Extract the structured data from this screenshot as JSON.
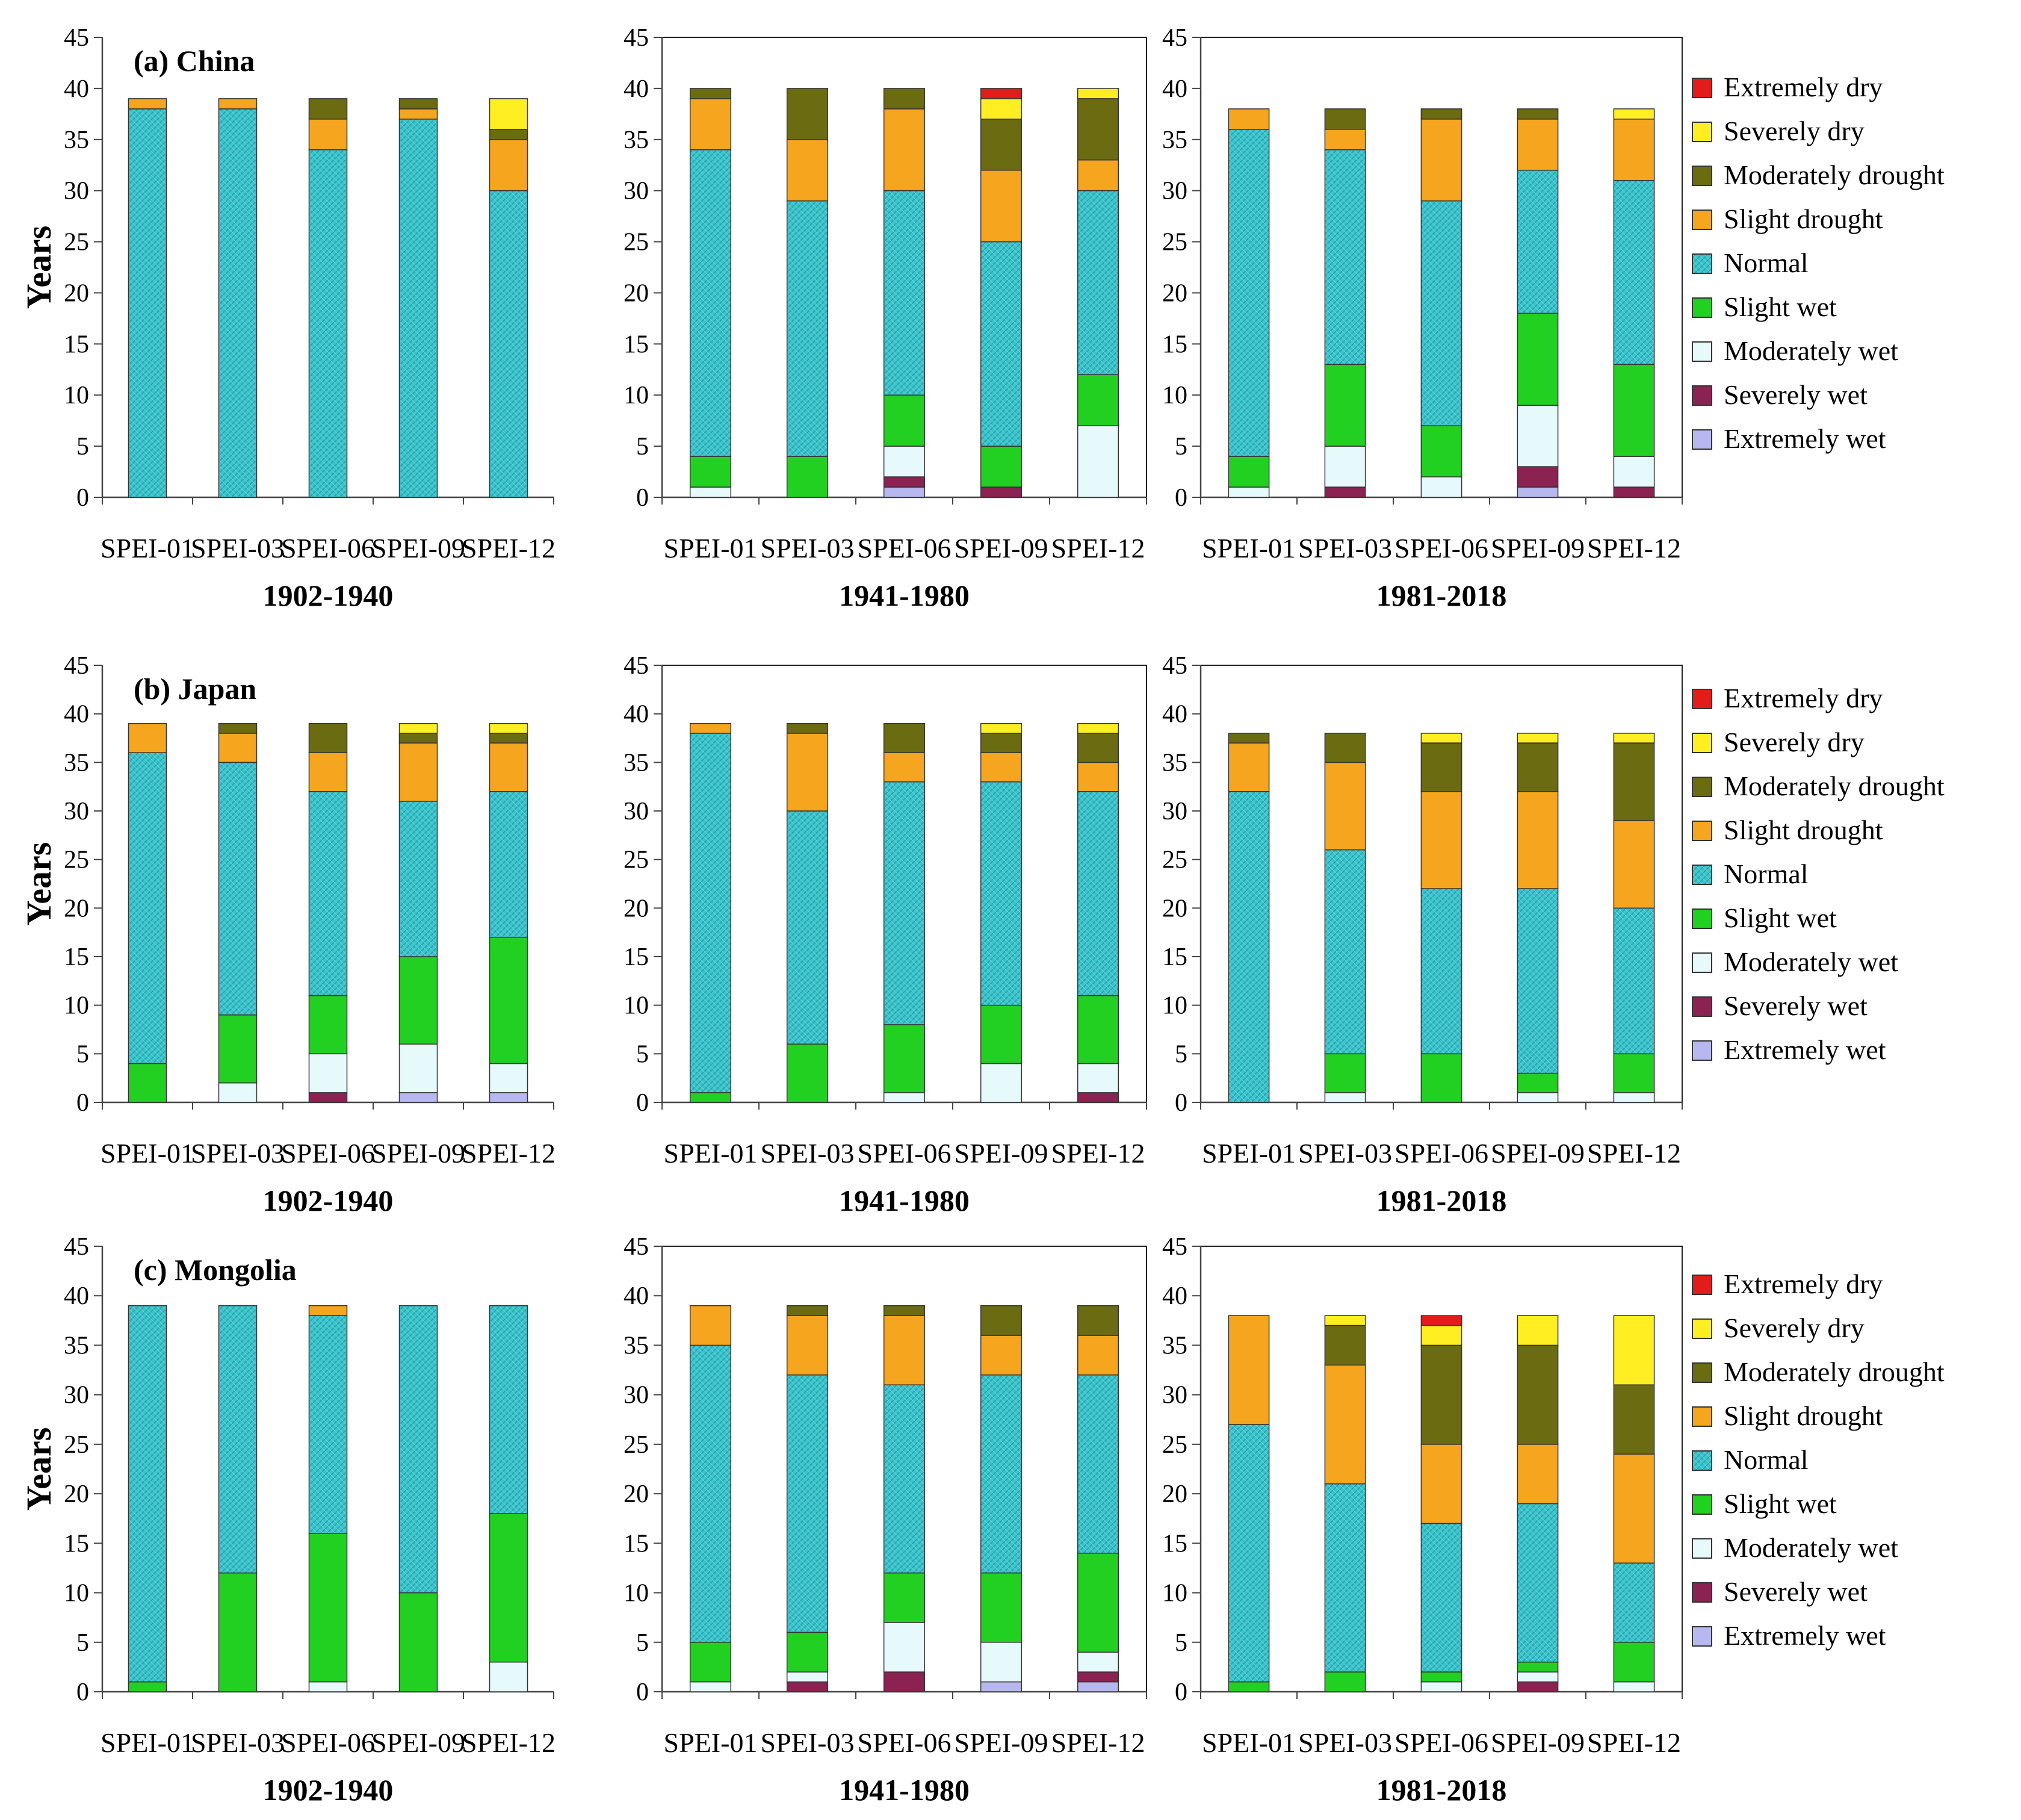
{
  "figure": {
    "y_axis_label": "Years",
    "categories": [
      "SPEI-01",
      "SPEI-03",
      "SPEI-06",
      "SPEI-09",
      "SPEI-12"
    ],
    "periods": [
      "1902-1940",
      "1941-1980",
      "1981-2018"
    ],
    "y_ticks": [
      "0",
      "5",
      "10",
      "15",
      "20",
      "25",
      "30",
      "35",
      "40",
      "45"
    ]
  },
  "classes": [
    {
      "name": "Extremely wet",
      "color": "#b8b8f0",
      "icon": "extremely-wet-swatch"
    },
    {
      "name": "Severely wet",
      "color": "#8b2252",
      "icon": "severely-wet-swatch"
    },
    {
      "name": "Moderately wet",
      "color": "#e6f9fb",
      "icon": "moderately-wet-swatch"
    },
    {
      "name": "Slight wet",
      "color": "#22d022",
      "icon": "slight-wet-swatch"
    },
    {
      "name": "Normal",
      "color": "#3cc4cc",
      "icon": "normal-swatch"
    },
    {
      "name": "Slight drought",
      "color": "#f5a51e",
      "icon": "slight-drought-swatch"
    },
    {
      "name": "Moderately drought",
      "color": "#6b6b12",
      "icon": "moderately-drought-swatch"
    },
    {
      "name": "Severely dry",
      "color": "#ffee22",
      "icon": "severely-dry-swatch"
    },
    {
      "name": "Extremely dry",
      "color": "#e21b1b",
      "icon": "extremely-dry-swatch"
    }
  ],
  "chart_data": [
    {
      "type": "bar",
      "stacked": true,
      "title": "(a) China",
      "xlabel": "1902-1940",
      "ylabel": "Years",
      "ylim": [
        0,
        45
      ],
      "categories": [
        "SPEI-01",
        "SPEI-03",
        "SPEI-06",
        "SPEI-09",
        "SPEI-12"
      ],
      "series": [
        {
          "name": "Extremely wet",
          "values": [
            0,
            0,
            0,
            0,
            0
          ]
        },
        {
          "name": "Severely wet",
          "values": [
            0,
            0,
            0,
            0,
            0
          ]
        },
        {
          "name": "Moderately wet",
          "values": [
            0,
            0,
            0,
            0,
            0
          ]
        },
        {
          "name": "Slight wet",
          "values": [
            0,
            0,
            0,
            0,
            0
          ]
        },
        {
          "name": "Normal",
          "values": [
            38,
            38,
            34,
            37,
            30
          ]
        },
        {
          "name": "Slight drought",
          "values": [
            1,
            1,
            3,
            1,
            5
          ]
        },
        {
          "name": "Moderately drought",
          "values": [
            0,
            0,
            2,
            1,
            1
          ]
        },
        {
          "name": "Severely dry",
          "values": [
            0,
            0,
            0,
            0,
            3
          ]
        },
        {
          "name": "Extremely dry",
          "values": [
            0,
            0,
            0,
            0,
            0
          ]
        }
      ]
    },
    {
      "type": "bar",
      "stacked": true,
      "title": "",
      "xlabel": "1941-1980",
      "ylabel": "",
      "ylim": [
        0,
        45
      ],
      "categories": [
        "SPEI-01",
        "SPEI-03",
        "SPEI-06",
        "SPEI-09",
        "SPEI-12"
      ],
      "series": [
        {
          "name": "Extremely wet",
          "values": [
            0,
            0,
            1,
            0,
            0
          ]
        },
        {
          "name": "Severely wet",
          "values": [
            0,
            0,
            1,
            1,
            0
          ]
        },
        {
          "name": "Moderately wet",
          "values": [
            1,
            0,
            3,
            0,
            7
          ]
        },
        {
          "name": "Slight wet",
          "values": [
            3,
            4,
            5,
            4,
            5
          ]
        },
        {
          "name": "Normal",
          "values": [
            30,
            25,
            20,
            20,
            18
          ]
        },
        {
          "name": "Slight drought",
          "values": [
            5,
            6,
            8,
            7,
            3
          ]
        },
        {
          "name": "Moderately drought",
          "values": [
            1,
            5,
            2,
            5,
            6
          ]
        },
        {
          "name": "Severely dry",
          "values": [
            0,
            0,
            0,
            2,
            1
          ]
        },
        {
          "name": "Extremely dry",
          "values": [
            0,
            0,
            0,
            1,
            0
          ]
        }
      ]
    },
    {
      "type": "bar",
      "stacked": true,
      "title": "",
      "xlabel": "1981-2018",
      "ylabel": "",
      "ylim": [
        0,
        45
      ],
      "categories": [
        "SPEI-01",
        "SPEI-03",
        "SPEI-06",
        "SPEI-09",
        "SPEI-12"
      ],
      "series": [
        {
          "name": "Extremely wet",
          "values": [
            0,
            0,
            0,
            1,
            0
          ]
        },
        {
          "name": "Severely wet",
          "values": [
            0,
            1,
            0,
            2,
            1
          ]
        },
        {
          "name": "Moderately wet",
          "values": [
            1,
            4,
            2,
            6,
            3
          ]
        },
        {
          "name": "Slight wet",
          "values": [
            3,
            8,
            5,
            9,
            9
          ]
        },
        {
          "name": "Normal",
          "values": [
            32,
            21,
            22,
            14,
            18
          ]
        },
        {
          "name": "Slight drought",
          "values": [
            2,
            2,
            8,
            5,
            6
          ]
        },
        {
          "name": "Moderately drought",
          "values": [
            0,
            2,
            1,
            1,
            0
          ]
        },
        {
          "name": "Severely dry",
          "values": [
            0,
            0,
            0,
            0,
            1
          ]
        },
        {
          "name": "Extremely dry",
          "values": [
            0,
            0,
            0,
            0,
            0
          ]
        }
      ]
    },
    {
      "type": "bar",
      "stacked": true,
      "title": "(b) Japan",
      "xlabel": "1902-1940",
      "ylabel": "Years",
      "ylim": [
        0,
        45
      ],
      "categories": [
        "SPEI-01",
        "SPEI-03",
        "SPEI-06",
        "SPEI-09",
        "SPEI-12"
      ],
      "series": [
        {
          "name": "Extremely wet",
          "values": [
            0,
            0,
            0,
            1,
            1
          ]
        },
        {
          "name": "Severely wet",
          "values": [
            0,
            0,
            1,
            0,
            0
          ]
        },
        {
          "name": "Moderately wet",
          "values": [
            0,
            2,
            4,
            5,
            3
          ]
        },
        {
          "name": "Slight wet",
          "values": [
            4,
            7,
            6,
            9,
            13
          ]
        },
        {
          "name": "Normal",
          "values": [
            32,
            26,
            21,
            16,
            15
          ]
        },
        {
          "name": "Slight drought",
          "values": [
            3,
            3,
            4,
            6,
            5
          ]
        },
        {
          "name": "Moderately drought",
          "values": [
            0,
            1,
            3,
            1,
            1
          ]
        },
        {
          "name": "Severely dry",
          "values": [
            0,
            0,
            0,
            1,
            1
          ]
        },
        {
          "name": "Extremely dry",
          "values": [
            0,
            0,
            0,
            0,
            0
          ]
        }
      ]
    },
    {
      "type": "bar",
      "stacked": true,
      "title": "",
      "xlabel": "1941-1980",
      "ylabel": "",
      "ylim": [
        0,
        45
      ],
      "categories": [
        "SPEI-01",
        "SPEI-03",
        "SPEI-06",
        "SPEI-09",
        "SPEI-12"
      ],
      "series": [
        {
          "name": "Extremely wet",
          "values": [
            0,
            0,
            0,
            0,
            0
          ]
        },
        {
          "name": "Severely wet",
          "values": [
            0,
            0,
            0,
            0,
            1
          ]
        },
        {
          "name": "Moderately wet",
          "values": [
            0,
            0,
            1,
            4,
            3
          ]
        },
        {
          "name": "Slight wet",
          "values": [
            1,
            6,
            7,
            6,
            7
          ]
        },
        {
          "name": "Normal",
          "values": [
            37,
            24,
            25,
            23,
            21
          ]
        },
        {
          "name": "Slight drought",
          "values": [
            1,
            8,
            3,
            3,
            3
          ]
        },
        {
          "name": "Moderately drought",
          "values": [
            0,
            1,
            3,
            2,
            3
          ]
        },
        {
          "name": "Severely dry",
          "values": [
            0,
            0,
            0,
            1,
            1
          ]
        },
        {
          "name": "Extremely dry",
          "values": [
            0,
            0,
            0,
            0,
            0
          ]
        }
      ]
    },
    {
      "type": "bar",
      "stacked": true,
      "title": "",
      "xlabel": "1981-2018",
      "ylabel": "",
      "ylim": [
        0,
        45
      ],
      "categories": [
        "SPEI-01",
        "SPEI-03",
        "SPEI-06",
        "SPEI-09",
        "SPEI-12"
      ],
      "series": [
        {
          "name": "Extremely wet",
          "values": [
            0,
            0,
            0,
            0,
            0
          ]
        },
        {
          "name": "Severely wet",
          "values": [
            0,
            0,
            0,
            0,
            0
          ]
        },
        {
          "name": "Moderately wet",
          "values": [
            0,
            1,
            0,
            1,
            1
          ]
        },
        {
          "name": "Slight wet",
          "values": [
            0,
            4,
            5,
            2,
            4
          ]
        },
        {
          "name": "Normal",
          "values": [
            32,
            21,
            17,
            19,
            15
          ]
        },
        {
          "name": "Slight drought",
          "values": [
            5,
            9,
            10,
            10,
            9
          ]
        },
        {
          "name": "Moderately drought",
          "values": [
            1,
            3,
            5,
            5,
            8
          ]
        },
        {
          "name": "Severely dry",
          "values": [
            0,
            0,
            1,
            1,
            1
          ]
        },
        {
          "name": "Extremely dry",
          "values": [
            0,
            0,
            0,
            0,
            0
          ]
        }
      ]
    },
    {
      "type": "bar",
      "stacked": true,
      "title": "(c) Mongolia",
      "xlabel": "1902-1940",
      "ylabel": "Years",
      "ylim": [
        0,
        45
      ],
      "categories": [
        "SPEI-01",
        "SPEI-03",
        "SPEI-06",
        "SPEI-09",
        "SPEI-12"
      ],
      "series": [
        {
          "name": "Extremely wet",
          "values": [
            0,
            0,
            0,
            0,
            0
          ]
        },
        {
          "name": "Severely wet",
          "values": [
            0,
            0,
            0,
            0,
            0
          ]
        },
        {
          "name": "Moderately wet",
          "values": [
            0,
            0,
            1,
            0,
            3
          ]
        },
        {
          "name": "Slight wet",
          "values": [
            1,
            12,
            15,
            10,
            15
          ]
        },
        {
          "name": "Normal",
          "values": [
            38,
            27,
            22,
            29,
            21
          ]
        },
        {
          "name": "Slight drought",
          "values": [
            0,
            0,
            1,
            0,
            0
          ]
        },
        {
          "name": "Moderately drought",
          "values": [
            0,
            0,
            0,
            0,
            0
          ]
        },
        {
          "name": "Severely dry",
          "values": [
            0,
            0,
            0,
            0,
            0
          ]
        },
        {
          "name": "Extremely dry",
          "values": [
            0,
            0,
            0,
            0,
            0
          ]
        }
      ]
    },
    {
      "type": "bar",
      "stacked": true,
      "title": "",
      "xlabel": "1941-1980",
      "ylabel": "",
      "ylim": [
        0,
        45
      ],
      "categories": [
        "SPEI-01",
        "SPEI-03",
        "SPEI-06",
        "SPEI-09",
        "SPEI-12"
      ],
      "series": [
        {
          "name": "Extremely wet",
          "values": [
            0,
            0,
            0,
            1,
            1
          ]
        },
        {
          "name": "Severely wet",
          "values": [
            0,
            1,
            2,
            0,
            1
          ]
        },
        {
          "name": "Moderately wet",
          "values": [
            1,
            1,
            5,
            4,
            2
          ]
        },
        {
          "name": "Slight wet",
          "values": [
            4,
            4,
            5,
            7,
            10
          ]
        },
        {
          "name": "Normal",
          "values": [
            30,
            26,
            19,
            20,
            18
          ]
        },
        {
          "name": "Slight drought",
          "values": [
            4,
            6,
            7,
            4,
            4
          ]
        },
        {
          "name": "Moderately drought",
          "values": [
            0,
            1,
            1,
            3,
            3
          ]
        },
        {
          "name": "Severely dry",
          "values": [
            0,
            0,
            0,
            0,
            0
          ]
        },
        {
          "name": "Extremely dry",
          "values": [
            0,
            0,
            0,
            0,
            0
          ]
        }
      ]
    },
    {
      "type": "bar",
      "stacked": true,
      "title": "",
      "xlabel": "1981-2018",
      "ylabel": "",
      "ylim": [
        0,
        45
      ],
      "categories": [
        "SPEI-01",
        "SPEI-03",
        "SPEI-06",
        "SPEI-09",
        "SPEI-12"
      ],
      "series": [
        {
          "name": "Extremely wet",
          "values": [
            0,
            0,
            0,
            0,
            0
          ]
        },
        {
          "name": "Severely wet",
          "values": [
            0,
            0,
            0,
            1,
            0
          ]
        },
        {
          "name": "Moderately wet",
          "values": [
            0,
            0,
            1,
            1,
            1
          ]
        },
        {
          "name": "Slight wet",
          "values": [
            1,
            2,
            1,
            1,
            4
          ]
        },
        {
          "name": "Normal",
          "values": [
            26,
            19,
            15,
            16,
            8
          ]
        },
        {
          "name": "Slight drought",
          "values": [
            11,
            12,
            8,
            6,
            11
          ]
        },
        {
          "name": "Moderately drought",
          "values": [
            0,
            4,
            10,
            10,
            7
          ]
        },
        {
          "name": "Severely dry",
          "values": [
            0,
            1,
            2,
            3,
            7
          ]
        },
        {
          "name": "Extremely dry",
          "values": [
            0,
            0,
            1,
            0,
            0
          ]
        }
      ]
    }
  ]
}
